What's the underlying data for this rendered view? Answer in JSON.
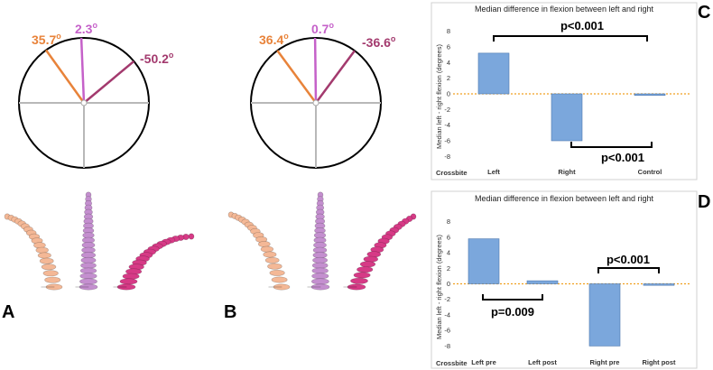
{
  "panels": {
    "A": "A",
    "B": "B",
    "C": "C",
    "D": "D"
  },
  "dials": [
    {
      "left_label": "35.7",
      "center_label": "2.3",
      "right_label": "-50.2",
      "left_value": 35.7,
      "center_value": 2.3,
      "right_value": -50.2
    },
    {
      "left_label": "36.4",
      "center_label": "0.7",
      "right_label": "-36.6",
      "left_value": 36.4,
      "center_value": 0.7,
      "right_value": -36.6
    }
  ],
  "degree_symbol": "o",
  "colors": {
    "left": "#e8833a",
    "center": "#c561c9",
    "right": "#a33a6e",
    "bar": "#7ba7dc",
    "bar_edge": "#4d78b0",
    "zero_line": "#f0a020",
    "spine_left": "#f4b896",
    "spine_center": "#c48fcf",
    "spine_right": "#d63a86"
  },
  "chart_data": [
    {
      "type": "bar",
      "title": "Median difference in flexion between left and right",
      "ylabel": "Median left - right flexion (degrees)",
      "xlabel": "Crossbite",
      "categories": [
        "Left",
        "Right",
        "Control"
      ],
      "values": [
        5.2,
        -6.0,
        -0.2
      ],
      "ylim": [
        -9,
        9
      ],
      "yticks": [
        "8",
        "6",
        "4",
        "2",
        "0",
        "-2",
        "-4",
        "-6",
        "-8"
      ],
      "annotations": [
        "p<0.001",
        "p<0.001"
      ]
    },
    {
      "type": "bar",
      "title": "Median difference in flexion between left and right",
      "ylabel": "Median left - right flexion (degrees)",
      "xlabel": "Crossbite",
      "categories": [
        "Left pre",
        "Left post",
        "Right pre",
        "Right post"
      ],
      "values": [
        5.8,
        0.4,
        -8.0,
        -0.2
      ],
      "ylim": [
        -9,
        9
      ],
      "yticks": [
        "8",
        "6",
        "4",
        "2",
        "0",
        "-2",
        "-4",
        "-6",
        "-8"
      ],
      "annotations": [
        "p=0.009",
        "p<0.001"
      ]
    }
  ]
}
